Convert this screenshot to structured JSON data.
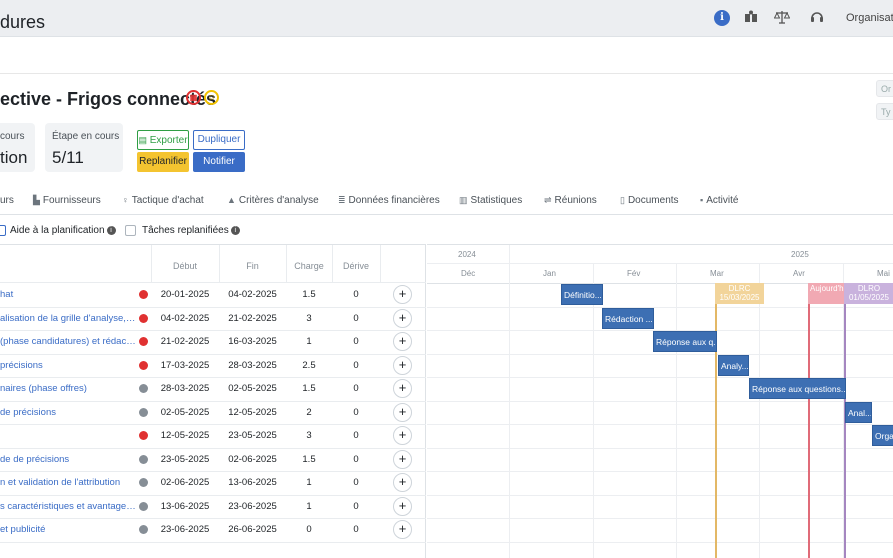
{
  "header": {
    "brand": "dures",
    "icons": [
      "info-icon",
      "library-icon",
      "scale-icon",
      "headset-icon"
    ],
    "org_label": "Organisatio"
  },
  "project": {
    "title": "ective - Frigos connectés",
    "badges": [
      "calendar-badge",
      "smiley-badge"
    ],
    "ghost_fields": [
      "Or",
      "Ty"
    ]
  },
  "cards": [
    {
      "label": "cours",
      "value": "tion"
    },
    {
      "label": "Étape en cours",
      "value": "5/11"
    }
  ],
  "actions": {
    "export": "Exporter",
    "duplicate": "Dupliquer",
    "replan": "Replanifier",
    "notify": "Notifier"
  },
  "tabs": [
    {
      "label": "urs",
      "icon": ""
    },
    {
      "label": "Fournisseurs",
      "icon": "factory-icon"
    },
    {
      "label": "Tactique d'achat",
      "icon": "lightbulb-icon"
    },
    {
      "label": "Critères d'analyse",
      "icon": "weight-icon"
    },
    {
      "label": "Données financières",
      "icon": "coins-icon"
    },
    {
      "label": "Statistiques",
      "icon": "chart-icon"
    },
    {
      "label": "Réunions",
      "icon": "handshake-icon"
    },
    {
      "label": "Documents",
      "icon": "file-icon"
    },
    {
      "label": "Activité",
      "icon": "comment-icon"
    }
  ],
  "options": {
    "planning_help": "Aide à la planification",
    "replanned_tasks": "Tâches replanifiées"
  },
  "table": {
    "columns": [
      "Début",
      "Fin",
      "Charge",
      "Dérive"
    ],
    "rows": [
      {
        "name": "hat",
        "status": "red",
        "start": "20-01-2025",
        "end": "04-02-2025",
        "load": "1.5",
        "drift": "0"
      },
      {
        "name": "alisation de la grille d'analyse, sti...",
        "status": "red",
        "start": "04-02-2025",
        "end": "21-02-2025",
        "load": "3",
        "drift": "0"
      },
      {
        "name": "(phase candidatures) et rédaction...",
        "status": "red",
        "start": "21-02-2025",
        "end": "16-03-2025",
        "load": "1",
        "drift": "0"
      },
      {
        "name": "précisions",
        "status": "red",
        "start": "17-03-2025",
        "end": "28-03-2025",
        "load": "2.5",
        "drift": "0"
      },
      {
        "name": "naires (phase offres)",
        "status": "gray",
        "start": "28-03-2025",
        "end": "02-05-2025",
        "load": "1.5",
        "drift": "0"
      },
      {
        "name": "de précisions",
        "status": "gray",
        "start": "02-05-2025",
        "end": "12-05-2025",
        "load": "2",
        "drift": "0"
      },
      {
        "name": "",
        "status": "red",
        "start": "12-05-2025",
        "end": "23-05-2025",
        "load": "3",
        "drift": "0"
      },
      {
        "name": "de de précisions",
        "status": "gray",
        "start": "23-05-2025",
        "end": "02-06-2025",
        "load": "1.5",
        "drift": "0"
      },
      {
        "name": "n et validation de l'attribution",
        "status": "gray",
        "start": "02-06-2025",
        "end": "13-06-2025",
        "load": "1",
        "drift": "0"
      },
      {
        "name": "s caractéristiques et avantages ...",
        "status": "gray",
        "start": "13-06-2025",
        "end": "23-06-2025",
        "load": "1",
        "drift": "0"
      },
      {
        "name": "et publicité",
        "status": "gray",
        "start": "23-06-2025",
        "end": "26-06-2025",
        "load": "0",
        "drift": "0"
      }
    ]
  },
  "gantt": {
    "years": [
      "2024",
      "2025"
    ],
    "months": [
      "Déc",
      "Jan",
      "Fév",
      "Mar",
      "Avr",
      "Mai"
    ],
    "bars": [
      {
        "label": "Définitio...",
        "row": 0
      },
      {
        "label": "Rédaction ...",
        "row": 1
      },
      {
        "label": "Réponse aux q...",
        "row": 2
      },
      {
        "label": "Analy...",
        "row": 3
      },
      {
        "label": "Réponse aux questions...",
        "row": 4
      },
      {
        "label": "Anal...",
        "row": 5
      },
      {
        "label": "Orga...",
        "row": 6
      }
    ],
    "milestones": [
      {
        "label": "DLRC",
        "date": "15/03/2025",
        "color": "#e3b866"
      },
      {
        "label": "Aujourd'hui",
        "date": "",
        "color": "#e06b78"
      },
      {
        "label": "DLRO",
        "date": "01/05/2025",
        "color": "#a586c0"
      }
    ]
  },
  "colors": {
    "accent": "#3a6cc6",
    "status_red": "#e03131",
    "status_gray": "#868e96",
    "bar": "#3d6fb3"
  }
}
